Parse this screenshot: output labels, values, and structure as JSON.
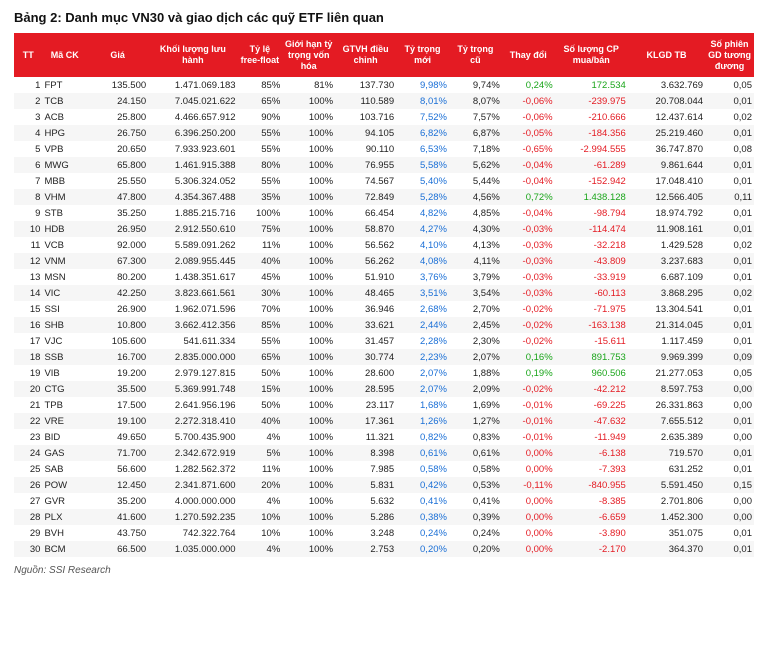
{
  "title": "Bảng 2: Danh mục VN30 và giao dịch các quỹ ETF liên quan",
  "source": "Nguồn: SSI Research",
  "colors": {
    "header_bg": "#e41b23",
    "header_fg": "#ffffff",
    "row_even_bg": "#f6f6f6",
    "blue": "#1a6fd6",
    "green": "#1aa51a",
    "red": "#e41b23"
  },
  "columns": [
    "TT",
    "Mã CK",
    "Giá",
    "Khối lượng lưu hành",
    "Tỷ lệ free-float",
    "Giới hạn tỷ trọng vốn hóa",
    "GTVH điều chỉnh",
    "Tỷ trọng mới",
    "Tỷ trọng cũ",
    "Thay đổi",
    "Số lượng CP mua/bán",
    "KLGD TB",
    "Số phiên GD tương đương"
  ],
  "rows": [
    {
      "tt": 1,
      "ck": "FPT",
      "gia": "135.500",
      "kllh": "1.471.069.183",
      "ff": "85%",
      "gh": "81%",
      "gtdc": "137.730",
      "ttm": "9,98%",
      "ttc": "9,74%",
      "td": "0,24%",
      "td_c": "green",
      "slcp": "172.534",
      "slcp_c": "green",
      "klgd": "3.632.769",
      "sp": "0,05"
    },
    {
      "tt": 2,
      "ck": "TCB",
      "gia": "24.150",
      "kllh": "7.045.021.622",
      "ff": "65%",
      "gh": "100%",
      "gtdc": "110.589",
      "ttm": "8,01%",
      "ttc": "8,07%",
      "td": "-0,06%",
      "td_c": "red",
      "slcp": "-239.975",
      "slcp_c": "red",
      "klgd": "20.708.044",
      "sp": "0,01"
    },
    {
      "tt": 3,
      "ck": "ACB",
      "gia": "25.800",
      "kllh": "4.466.657.912",
      "ff": "90%",
      "gh": "100%",
      "gtdc": "103.716",
      "ttm": "7,52%",
      "ttc": "7,57%",
      "td": "-0,06%",
      "td_c": "red",
      "slcp": "-210.666",
      "slcp_c": "red",
      "klgd": "12.437.614",
      "sp": "0,02"
    },
    {
      "tt": 4,
      "ck": "HPG",
      "gia": "26.750",
      "kllh": "6.396.250.200",
      "ff": "55%",
      "gh": "100%",
      "gtdc": "94.105",
      "ttm": "6,82%",
      "ttc": "6,87%",
      "td": "-0,05%",
      "td_c": "red",
      "slcp": "-184.356",
      "slcp_c": "red",
      "klgd": "25.219.460",
      "sp": "0,01"
    },
    {
      "tt": 5,
      "ck": "VPB",
      "gia": "20.650",
      "kllh": "7.933.923.601",
      "ff": "55%",
      "gh": "100%",
      "gtdc": "90.110",
      "ttm": "6,53%",
      "ttc": "7,18%",
      "td": "-0,65%",
      "td_c": "red",
      "slcp": "-2.994.555",
      "slcp_c": "red",
      "klgd": "36.747.870",
      "sp": "0,08"
    },
    {
      "tt": 6,
      "ck": "MWG",
      "gia": "65.800",
      "kllh": "1.461.915.388",
      "ff": "80%",
      "gh": "100%",
      "gtdc": "76.955",
      "ttm": "5,58%",
      "ttc": "5,62%",
      "td": "-0,04%",
      "td_c": "red",
      "slcp": "-61.289",
      "slcp_c": "red",
      "klgd": "9.861.644",
      "sp": "0,01"
    },
    {
      "tt": 7,
      "ck": "MBB",
      "gia": "25.550",
      "kllh": "5.306.324.052",
      "ff": "55%",
      "gh": "100%",
      "gtdc": "74.567",
      "ttm": "5,40%",
      "ttc": "5,44%",
      "td": "-0,04%",
      "td_c": "red",
      "slcp": "-152.942",
      "slcp_c": "red",
      "klgd": "17.048.410",
      "sp": "0,01"
    },
    {
      "tt": 8,
      "ck": "VHM",
      "gia": "47.800",
      "kllh": "4.354.367.488",
      "ff": "35%",
      "gh": "100%",
      "gtdc": "72.849",
      "ttm": "5,28%",
      "ttc": "4,56%",
      "td": "0,72%",
      "td_c": "green",
      "slcp": "1.438.128",
      "slcp_c": "green",
      "klgd": "12.566.405",
      "sp": "0,11"
    },
    {
      "tt": 9,
      "ck": "STB",
      "gia": "35.250",
      "kllh": "1.885.215.716",
      "ff": "100%",
      "gh": "100%",
      "gtdc": "66.454",
      "ttm": "4,82%",
      "ttc": "4,85%",
      "td": "-0,04%",
      "td_c": "red",
      "slcp": "-98.794",
      "slcp_c": "red",
      "klgd": "18.974.792",
      "sp": "0,01"
    },
    {
      "tt": 10,
      "ck": "HDB",
      "gia": "26.950",
      "kllh": "2.912.550.610",
      "ff": "75%",
      "gh": "100%",
      "gtdc": "58.870",
      "ttm": "4,27%",
      "ttc": "4,30%",
      "td": "-0,03%",
      "td_c": "red",
      "slcp": "-114.474",
      "slcp_c": "red",
      "klgd": "11.908.161",
      "sp": "0,01"
    },
    {
      "tt": 11,
      "ck": "VCB",
      "gia": "92.000",
      "kllh": "5.589.091.262",
      "ff": "11%",
      "gh": "100%",
      "gtdc": "56.562",
      "ttm": "4,10%",
      "ttc": "4,13%",
      "td": "-0,03%",
      "td_c": "red",
      "slcp": "-32.218",
      "slcp_c": "red",
      "klgd": "1.429.528",
      "sp": "0,02"
    },
    {
      "tt": 12,
      "ck": "VNM",
      "gia": "67.300",
      "kllh": "2.089.955.445",
      "ff": "40%",
      "gh": "100%",
      "gtdc": "56.262",
      "ttm": "4,08%",
      "ttc": "4,11%",
      "td": "-0,03%",
      "td_c": "red",
      "slcp": "-43.809",
      "slcp_c": "red",
      "klgd": "3.237.683",
      "sp": "0,01"
    },
    {
      "tt": 13,
      "ck": "MSN",
      "gia": "80.200",
      "kllh": "1.438.351.617",
      "ff": "45%",
      "gh": "100%",
      "gtdc": "51.910",
      "ttm": "3,76%",
      "ttc": "3,79%",
      "td": "-0,03%",
      "td_c": "red",
      "slcp": "-33.919",
      "slcp_c": "red",
      "klgd": "6.687.109",
      "sp": "0,01"
    },
    {
      "tt": 14,
      "ck": "VIC",
      "gia": "42.250",
      "kllh": "3.823.661.561",
      "ff": "30%",
      "gh": "100%",
      "gtdc": "48.465",
      "ttm": "3,51%",
      "ttc": "3,54%",
      "td": "-0,03%",
      "td_c": "red",
      "slcp": "-60.113",
      "slcp_c": "red",
      "klgd": "3.868.295",
      "sp": "0,02"
    },
    {
      "tt": 15,
      "ck": "SSI",
      "gia": "26.900",
      "kllh": "1.962.071.596",
      "ff": "70%",
      "gh": "100%",
      "gtdc": "36.946",
      "ttm": "2,68%",
      "ttc": "2,70%",
      "td": "-0,02%",
      "td_c": "red",
      "slcp": "-71.975",
      "slcp_c": "red",
      "klgd": "13.304.541",
      "sp": "0,01"
    },
    {
      "tt": 16,
      "ck": "SHB",
      "gia": "10.800",
      "kllh": "3.662.412.356",
      "ff": "85%",
      "gh": "100%",
      "gtdc": "33.621",
      "ttm": "2,44%",
      "ttc": "2,45%",
      "td": "-0,02%",
      "td_c": "red",
      "slcp": "-163.138",
      "slcp_c": "red",
      "klgd": "21.314.045",
      "sp": "0,01"
    },
    {
      "tt": 17,
      "ck": "VJC",
      "gia": "105.600",
      "kllh": "541.611.334",
      "ff": "55%",
      "gh": "100%",
      "gtdc": "31.457",
      "ttm": "2,28%",
      "ttc": "2,30%",
      "td": "-0,02%",
      "td_c": "red",
      "slcp": "-15.611",
      "slcp_c": "red",
      "klgd": "1.117.459",
      "sp": "0,01"
    },
    {
      "tt": 18,
      "ck": "SSB",
      "gia": "16.700",
      "kllh": "2.835.000.000",
      "ff": "65%",
      "gh": "100%",
      "gtdc": "30.774",
      "ttm": "2,23%",
      "ttc": "2,07%",
      "td": "0,16%",
      "td_c": "green",
      "slcp": "891.753",
      "slcp_c": "green",
      "klgd": "9.969.399",
      "sp": "0,09"
    },
    {
      "tt": 19,
      "ck": "VIB",
      "gia": "19.200",
      "kllh": "2.979.127.815",
      "ff": "50%",
      "gh": "100%",
      "gtdc": "28.600",
      "ttm": "2,07%",
      "ttc": "1,88%",
      "td": "0,19%",
      "td_c": "green",
      "slcp": "960.506",
      "slcp_c": "green",
      "klgd": "21.277.053",
      "sp": "0,05"
    },
    {
      "tt": 20,
      "ck": "CTG",
      "gia": "35.500",
      "kllh": "5.369.991.748",
      "ff": "15%",
      "gh": "100%",
      "gtdc": "28.595",
      "ttm": "2,07%",
      "ttc": "2,09%",
      "td": "-0,02%",
      "td_c": "red",
      "slcp": "-42.212",
      "slcp_c": "red",
      "klgd": "8.597.753",
      "sp": "0,00"
    },
    {
      "tt": 21,
      "ck": "TPB",
      "gia": "17.500",
      "kllh": "2.641.956.196",
      "ff": "50%",
      "gh": "100%",
      "gtdc": "23.117",
      "ttm": "1,68%",
      "ttc": "1,69%",
      "td": "-0,01%",
      "td_c": "red",
      "slcp": "-69.225",
      "slcp_c": "red",
      "klgd": "26.331.863",
      "sp": "0,00"
    },
    {
      "tt": 22,
      "ck": "VRE",
      "gia": "19.100",
      "kllh": "2.272.318.410",
      "ff": "40%",
      "gh": "100%",
      "gtdc": "17.361",
      "ttm": "1,26%",
      "ttc": "1,27%",
      "td": "-0,01%",
      "td_c": "red",
      "slcp": "-47.632",
      "slcp_c": "red",
      "klgd": "7.655.512",
      "sp": "0,01"
    },
    {
      "tt": 23,
      "ck": "BID",
      "gia": "49.650",
      "kllh": "5.700.435.900",
      "ff": "4%",
      "gh": "100%",
      "gtdc": "11.321",
      "ttm": "0,82%",
      "ttc": "0,83%",
      "td": "-0,01%",
      "td_c": "red",
      "slcp": "-11.949",
      "slcp_c": "red",
      "klgd": "2.635.389",
      "sp": "0,00"
    },
    {
      "tt": 24,
      "ck": "GAS",
      "gia": "71.700",
      "kllh": "2.342.672.919",
      "ff": "5%",
      "gh": "100%",
      "gtdc": "8.398",
      "ttm": "0,61%",
      "ttc": "0,61%",
      "td": "0,00%",
      "td_c": "red",
      "slcp": "-6.138",
      "slcp_c": "red",
      "klgd": "719.570",
      "sp": "0,01"
    },
    {
      "tt": 25,
      "ck": "SAB",
      "gia": "56.600",
      "kllh": "1.282.562.372",
      "ff": "11%",
      "gh": "100%",
      "gtdc": "7.985",
      "ttm": "0,58%",
      "ttc": "0,58%",
      "td": "0,00%",
      "td_c": "red",
      "slcp": "-7.393",
      "slcp_c": "red",
      "klgd": "631.252",
      "sp": "0,01"
    },
    {
      "tt": 26,
      "ck": "POW",
      "gia": "12.450",
      "kllh": "2.341.871.600",
      "ff": "20%",
      "gh": "100%",
      "gtdc": "5.831",
      "ttm": "0,42%",
      "ttc": "0,53%",
      "td": "-0,11%",
      "td_c": "red",
      "slcp": "-840.955",
      "slcp_c": "red",
      "klgd": "5.591.450",
      "sp": "0,15"
    },
    {
      "tt": 27,
      "ck": "GVR",
      "gia": "35.200",
      "kllh": "4.000.000.000",
      "ff": "4%",
      "gh": "100%",
      "gtdc": "5.632",
      "ttm": "0,41%",
      "ttc": "0,41%",
      "td": "0,00%",
      "td_c": "red",
      "slcp": "-8.385",
      "slcp_c": "red",
      "klgd": "2.701.806",
      "sp": "0,00"
    },
    {
      "tt": 28,
      "ck": "PLX",
      "gia": "41.600",
      "kllh": "1.270.592.235",
      "ff": "10%",
      "gh": "100%",
      "gtdc": "5.286",
      "ttm": "0,38%",
      "ttc": "0,39%",
      "td": "0,00%",
      "td_c": "red",
      "slcp": "-6.659",
      "slcp_c": "red",
      "klgd": "1.452.300",
      "sp": "0,00"
    },
    {
      "tt": 29,
      "ck": "BVH",
      "gia": "43.750",
      "kllh": "742.322.764",
      "ff": "10%",
      "gh": "100%",
      "gtdc": "3.248",
      "ttm": "0,24%",
      "ttc": "0,24%",
      "td": "0,00%",
      "td_c": "red",
      "slcp": "-3.890",
      "slcp_c": "red",
      "klgd": "351.075",
      "sp": "0,01"
    },
    {
      "tt": 30,
      "ck": "BCM",
      "gia": "66.500",
      "kllh": "1.035.000.000",
      "ff": "4%",
      "gh": "100%",
      "gtdc": "2.753",
      "ttm": "0,20%",
      "ttc": "0,20%",
      "td": "0,00%",
      "td_c": "red",
      "slcp": "-2.170",
      "slcp_c": "red",
      "klgd": "364.370",
      "sp": "0,01"
    }
  ]
}
